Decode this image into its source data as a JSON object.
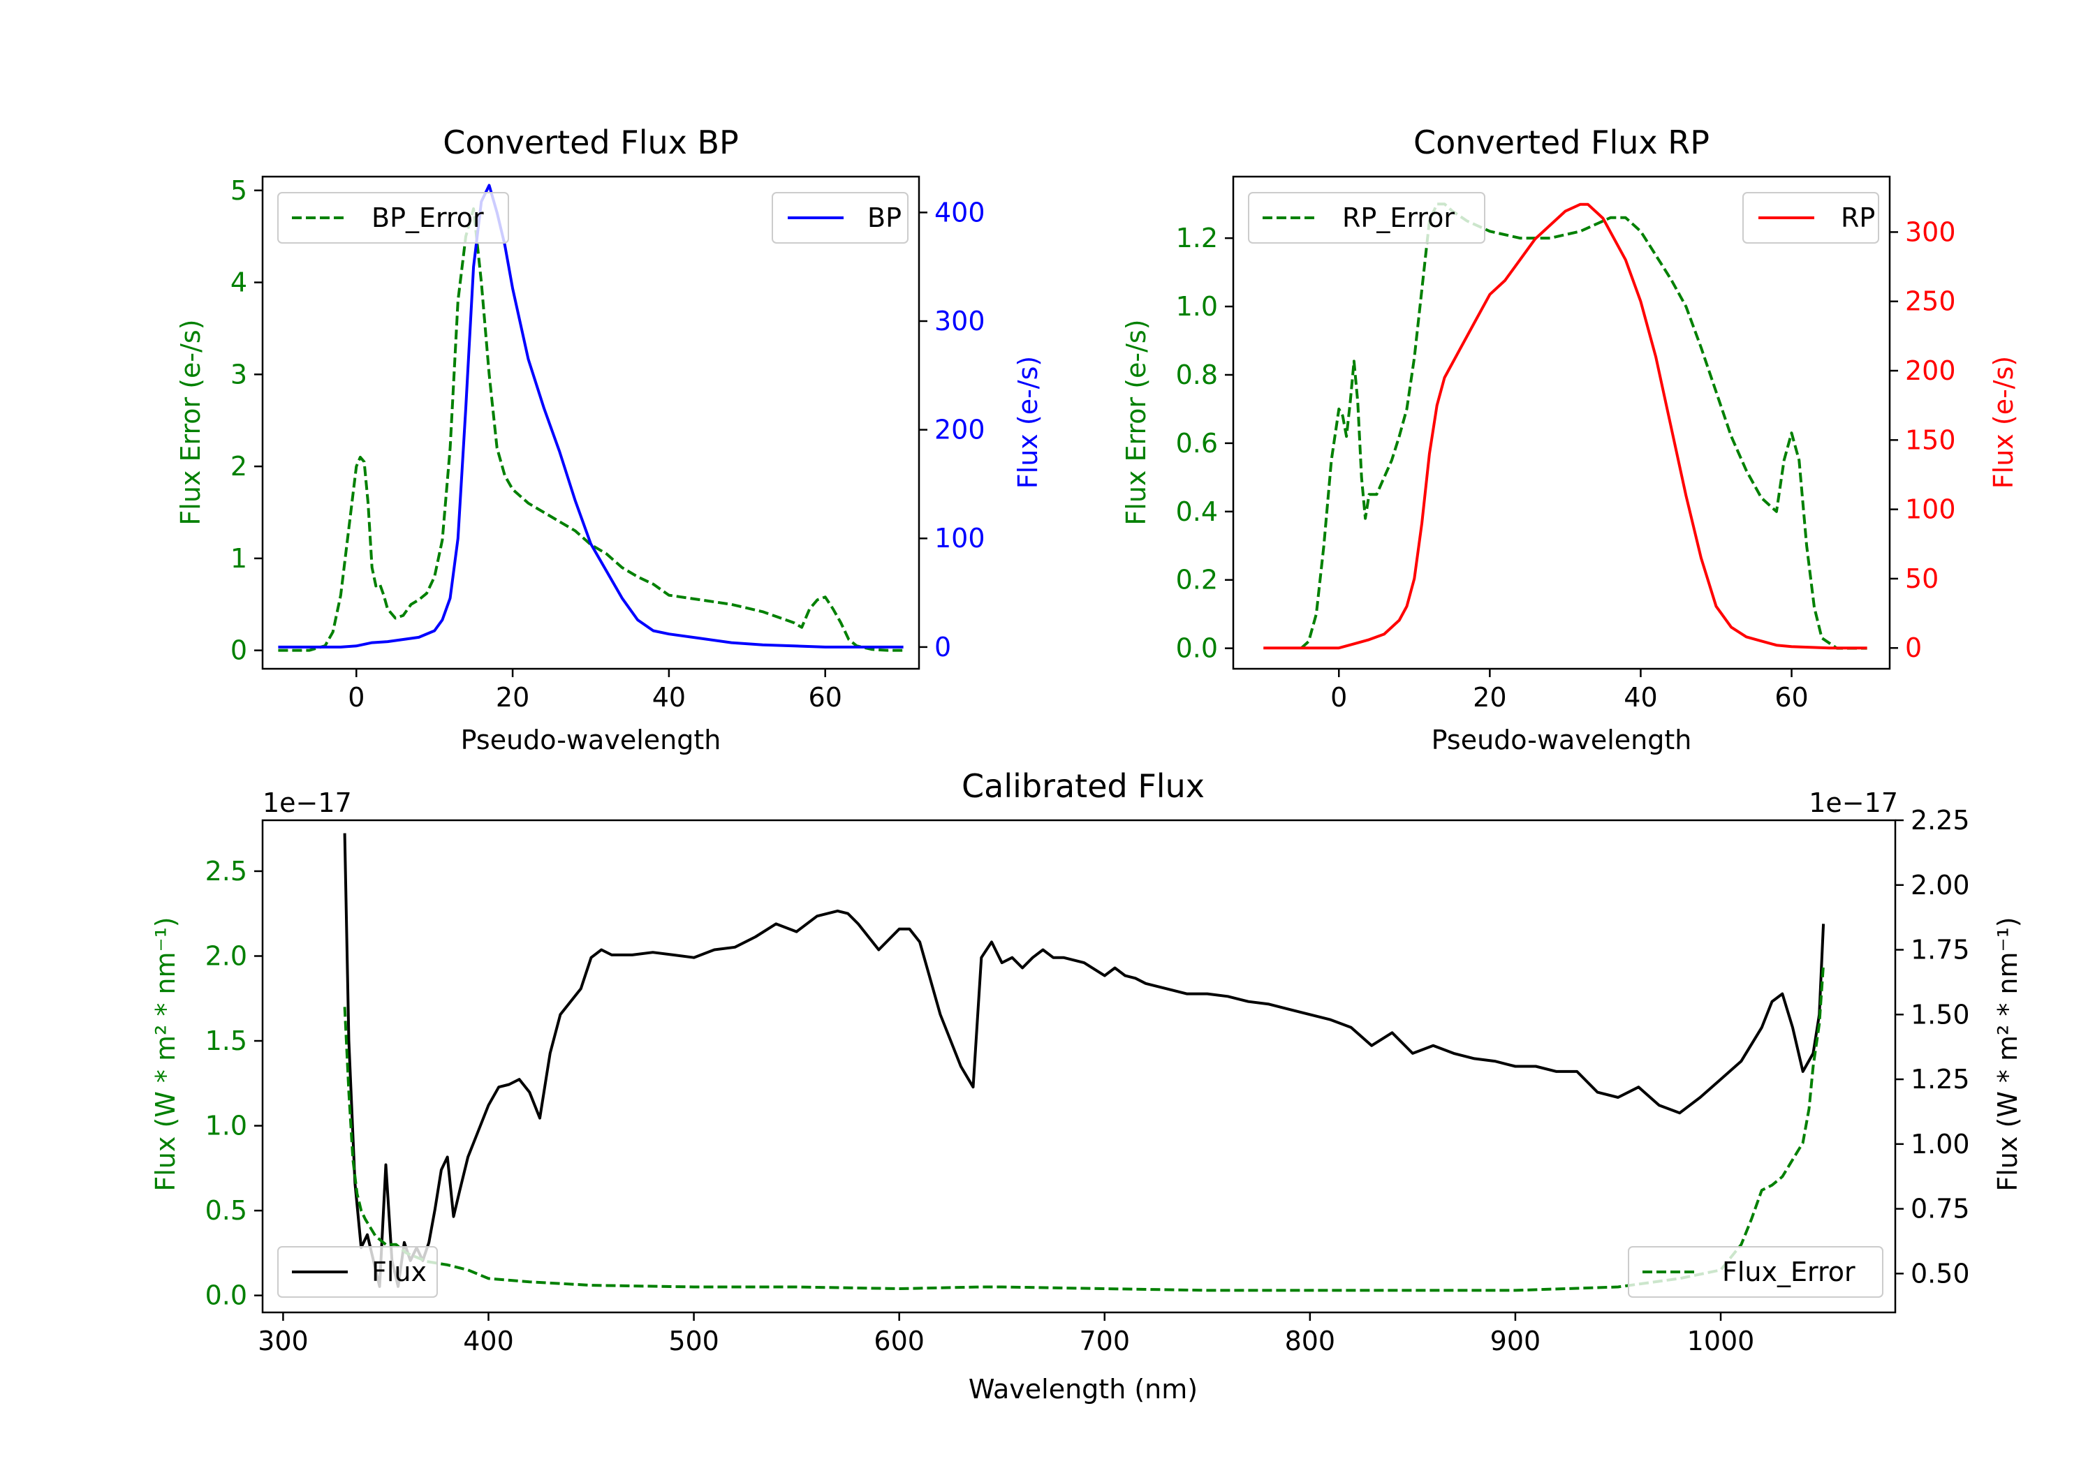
{
  "colors": {
    "green": "#008000",
    "blue": "#0000ff",
    "red": "#ff0000",
    "black": "#000000",
    "axis": "#000000",
    "legend_border": "#cccccc"
  },
  "chart_data": [
    {
      "type": "line",
      "id": "bp",
      "title": "Converted Flux BP",
      "xlabel": "Pseudo-wavelength",
      "ylabel_left": "Flux Error (e-/s)",
      "ylabel_right": "Flux (e-/s)",
      "xlim": [
        -12,
        72
      ],
      "ylim_left": [
        -0.2,
        5.15
      ],
      "ylim_right": [
        -20,
        433
      ],
      "xticks": [
        0,
        20,
        40,
        60
      ],
      "xtick_labels": [
        "0",
        "20",
        "40",
        "60"
      ],
      "yticks_left": [
        0,
        1,
        2,
        3,
        4,
        5
      ],
      "ytick_labels_left": [
        "0",
        "1",
        "2",
        "3",
        "4",
        "5"
      ],
      "yticks_right": [
        0,
        100,
        200,
        300,
        400
      ],
      "ytick_labels_right": [
        "0",
        "100",
        "200",
        "300",
        "400"
      ],
      "legend_left": "top-left",
      "legend_right": "top-right",
      "series": [
        {
          "name": "BP_Error",
          "axis": "left",
          "color": "#008000",
          "dash": true,
          "x": [
            -10,
            -6,
            -4,
            -3,
            -2,
            -1,
            0,
            0.5,
            1,
            1.5,
            2,
            2.5,
            3,
            3.5,
            4,
            5,
            6,
            7,
            8,
            9,
            10,
            11,
            12,
            13,
            14,
            15,
            16,
            17,
            18,
            19,
            20,
            22,
            24,
            26,
            28,
            30,
            32,
            34,
            36,
            38,
            40,
            44,
            48,
            52,
            56,
            57,
            58,
            59,
            60,
            61,
            62,
            63,
            64,
            66,
            68,
            70
          ],
          "y": [
            0,
            0,
            0.05,
            0.2,
            0.6,
            1.3,
            2.0,
            2.1,
            2.05,
            1.6,
            0.9,
            0.7,
            0.72,
            0.6,
            0.45,
            0.35,
            0.38,
            0.5,
            0.55,
            0.62,
            0.8,
            1.2,
            2.2,
            3.8,
            4.5,
            4.8,
            4.0,
            3.0,
            2.2,
            1.9,
            1.75,
            1.6,
            1.5,
            1.4,
            1.3,
            1.15,
            1.05,
            0.9,
            0.8,
            0.72,
            0.6,
            0.55,
            0.5,
            0.42,
            0.3,
            0.25,
            0.45,
            0.55,
            0.58,
            0.45,
            0.3,
            0.12,
            0.05,
            0.01,
            0,
            0
          ]
        },
        {
          "name": "BP",
          "axis": "right",
          "color": "#0000ff",
          "dash": false,
          "x": [
            -10,
            -5,
            -2,
            0,
            2,
            4,
            6,
            8,
            10,
            11,
            12,
            13,
            14,
            15,
            16,
            17,
            18,
            19,
            20,
            22,
            24,
            26,
            28,
            30,
            32,
            34,
            36,
            38,
            40,
            44,
            48,
            52,
            56,
            60,
            64,
            70
          ],
          "y": [
            0,
            0,
            0,
            1,
            4,
            5,
            7,
            9,
            15,
            25,
            45,
            100,
            220,
            350,
            410,
            425,
            400,
            370,
            330,
            265,
            220,
            180,
            135,
            95,
            70,
            45,
            25,
            15,
            12,
            8,
            4,
            2,
            1,
            0,
            0,
            0
          ]
        }
      ]
    },
    {
      "type": "line",
      "id": "rp",
      "title": "Converted Flux RP",
      "xlabel": "Pseudo-wavelength",
      "ylabel_left": "Flux Error (e-/s)",
      "ylabel_right": "Flux (e-/s)",
      "xlim": [
        -14,
        73
      ],
      "ylim_left": [
        -0.06,
        1.38
      ],
      "ylim_right": [
        -15,
        340
      ],
      "xticks": [
        0,
        20,
        40,
        60
      ],
      "xtick_labels": [
        "0",
        "20",
        "40",
        "60"
      ],
      "yticks_left": [
        0,
        0.2,
        0.4,
        0.6,
        0.8,
        1.0,
        1.2
      ],
      "ytick_labels_left": [
        "0.0",
        "0.2",
        "0.4",
        "0.6",
        "0.8",
        "1.0",
        "1.2"
      ],
      "yticks_right": [
        0,
        50,
        100,
        150,
        200,
        250,
        300
      ],
      "ytick_labels_right": [
        "0",
        "50",
        "100",
        "150",
        "200",
        "250",
        "300"
      ],
      "legend_left": "top-left",
      "legend_right": "top-right",
      "series": [
        {
          "name": "RP_Error",
          "axis": "left",
          "color": "#008000",
          "dash": true,
          "x": [
            -5,
            -4,
            -3,
            -2,
            -1,
            0,
            0.5,
            1,
            1.5,
            2,
            2.5,
            3,
            3.5,
            4,
            5,
            6,
            7,
            8,
            9,
            10,
            11,
            12,
            13,
            14,
            15,
            17,
            20,
            24,
            28,
            32,
            36,
            38,
            40,
            42,
            44,
            46,
            48,
            50,
            52,
            54,
            55,
            56,
            57,
            58,
            59,
            60,
            61,
            62,
            63,
            64,
            66,
            70
          ],
          "y": [
            0,
            0.02,
            0.1,
            0.3,
            0.55,
            0.7,
            0.68,
            0.62,
            0.72,
            0.84,
            0.72,
            0.5,
            0.38,
            0.45,
            0.45,
            0.5,
            0.55,
            0.62,
            0.7,
            0.85,
            1.05,
            1.25,
            1.3,
            1.3,
            1.28,
            1.25,
            1.22,
            1.2,
            1.2,
            1.22,
            1.26,
            1.26,
            1.22,
            1.15,
            1.08,
            1.0,
            0.88,
            0.75,
            0.62,
            0.52,
            0.48,
            0.44,
            0.42,
            0.4,
            0.55,
            0.63,
            0.55,
            0.3,
            0.12,
            0.03,
            0,
            0
          ]
        },
        {
          "name": "RP",
          "axis": "right",
          "color": "#ff0000",
          "dash": false,
          "x": [
            -10,
            -5,
            0,
            2,
            4,
            6,
            8,
            9,
            10,
            11,
            12,
            13,
            14,
            16,
            18,
            20,
            22,
            24,
            26,
            28,
            30,
            32,
            33,
            34,
            35,
            36,
            38,
            40,
            42,
            44,
            46,
            48,
            50,
            52,
            54,
            56,
            58,
            60,
            65,
            70
          ],
          "y": [
            0,
            0,
            0,
            3,
            6,
            10,
            20,
            30,
            50,
            90,
            140,
            175,
            195,
            215,
            235,
            255,
            265,
            280,
            295,
            305,
            315,
            320,
            320,
            315,
            310,
            300,
            280,
            250,
            210,
            160,
            110,
            65,
            30,
            15,
            8,
            5,
            2,
            1,
            0,
            0
          ]
        }
      ]
    },
    {
      "type": "line",
      "id": "calibrated",
      "title": "Calibrated Flux",
      "xlabel": "Wavelength (nm)",
      "ylabel_left": "Flux (W * m² * nm⁻¹)",
      "ylabel_right": "Flux (W * m² * nm⁻¹)",
      "offset_left": "1e−17",
      "offset_right": "1e−17",
      "xlim": [
        290,
        1085
      ],
      "ylim_left": [
        -0.1,
        2.8
      ],
      "ylim_right": [
        0.35,
        2.25
      ],
      "xticks": [
        300,
        400,
        500,
        600,
        700,
        800,
        900,
        1000
      ],
      "xtick_labels": [
        "300",
        "400",
        "500",
        "600",
        "700",
        "800",
        "900",
        "1000"
      ],
      "yticks_left": [
        0,
        0.5,
        1.0,
        1.5,
        2.0,
        2.5
      ],
      "ytick_labels_left": [
        "0.0",
        "0.5",
        "1.0",
        "1.5",
        "2.0",
        "2.5"
      ],
      "yticks_right": [
        0.5,
        0.75,
        1.0,
        1.25,
        1.5,
        1.75,
        2.0,
        2.25
      ],
      "ytick_labels_right": [
        "0.50",
        "0.75",
        "1.00",
        "1.25",
        "1.50",
        "1.75",
        "2.00",
        "2.25"
      ],
      "legend_left": "bottom-left",
      "legend_right": "bottom-right",
      "series": [
        {
          "name": "Flux",
          "axis": "right",
          "color": "#000000",
          "dash": false,
          "x": [
            330,
            332,
            335,
            338,
            341,
            344,
            347,
            350,
            353,
            356,
            359,
            362,
            365,
            368,
            371,
            374,
            377,
            380,
            383,
            386,
            390,
            395,
            400,
            405,
            410,
            415,
            420,
            425,
            430,
            435,
            440,
            445,
            450,
            455,
            460,
            470,
            480,
            490,
            500,
            510,
            520,
            530,
            540,
            550,
            560,
            570,
            575,
            580,
            590,
            600,
            605,
            610,
            620,
            630,
            636,
            640,
            645,
            650,
            655,
            660,
            665,
            670,
            675,
            680,
            690,
            700,
            705,
            710,
            715,
            720,
            730,
            740,
            750,
            760,
            770,
            780,
            790,
            800,
            810,
            820,
            830,
            840,
            850,
            860,
            870,
            880,
            890,
            900,
            910,
            920,
            930,
            940,
            950,
            960,
            970,
            980,
            990,
            1000,
            1010,
            1020,
            1025,
            1030,
            1035,
            1040,
            1045,
            1048,
            1050
          ],
          "y": [
            2.2,
            1.4,
            0.85,
            0.6,
            0.65,
            0.55,
            0.45,
            0.92,
            0.55,
            0.45,
            0.62,
            0.55,
            0.6,
            0.55,
            0.62,
            0.75,
            0.9,
            0.95,
            0.72,
            0.82,
            0.95,
            1.05,
            1.15,
            1.22,
            1.23,
            1.25,
            1.2,
            1.1,
            1.35,
            1.5,
            1.55,
            1.6,
            1.72,
            1.75,
            1.73,
            1.73,
            1.74,
            1.73,
            1.72,
            1.75,
            1.76,
            1.8,
            1.85,
            1.82,
            1.88,
            1.9,
            1.89,
            1.85,
            1.75,
            1.83,
            1.83,
            1.78,
            1.5,
            1.3,
            1.22,
            1.72,
            1.78,
            1.7,
            1.72,
            1.68,
            1.72,
            1.75,
            1.72,
            1.72,
            1.7,
            1.65,
            1.68,
            1.65,
            1.64,
            1.62,
            1.6,
            1.58,
            1.58,
            1.57,
            1.55,
            1.54,
            1.52,
            1.5,
            1.48,
            1.45,
            1.38,
            1.43,
            1.35,
            1.38,
            1.35,
            1.33,
            1.32,
            1.3,
            1.3,
            1.28,
            1.28,
            1.2,
            1.18,
            1.22,
            1.15,
            1.12,
            1.18,
            1.25,
            1.32,
            1.45,
            1.55,
            1.58,
            1.45,
            1.28,
            1.35,
            1.5,
            1.85
          ]
        },
        {
          "name": "Flux_Error",
          "axis": "left",
          "color": "#008000",
          "dash": true,
          "x": [
            330,
            332,
            334,
            336,
            338,
            340,
            345,
            350,
            355,
            360,
            370,
            380,
            390,
            400,
            420,
            450,
            500,
            550,
            600,
            640,
            650,
            700,
            750,
            800,
            850,
            900,
            950,
            980,
            1000,
            1010,
            1015,
            1020,
            1025,
            1030,
            1035,
            1040,
            1043,
            1045,
            1048,
            1050
          ],
          "y": [
            1.7,
            1.2,
            0.8,
            0.6,
            0.5,
            0.45,
            0.35,
            0.3,
            0.3,
            0.25,
            0.2,
            0.18,
            0.15,
            0.1,
            0.08,
            0.06,
            0.05,
            0.05,
            0.04,
            0.05,
            0.05,
            0.04,
            0.03,
            0.03,
            0.03,
            0.03,
            0.05,
            0.1,
            0.15,
            0.3,
            0.45,
            0.62,
            0.65,
            0.7,
            0.8,
            0.9,
            1.1,
            1.35,
            1.6,
            1.95
          ]
        }
      ]
    }
  ]
}
